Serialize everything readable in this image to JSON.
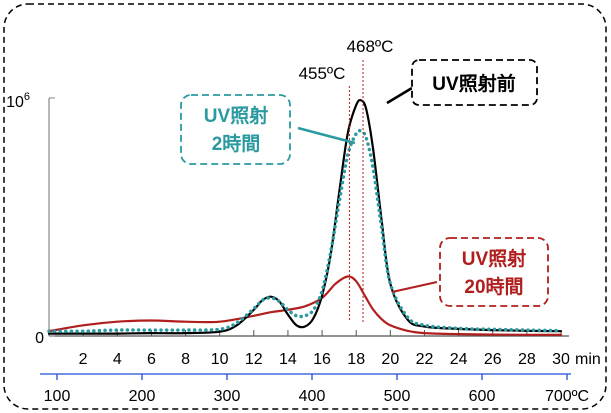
{
  "chart_data": {
    "type": "line",
    "x_unit": "min",
    "x_ticks": [
      2,
      4,
      6,
      8,
      10,
      12,
      14,
      16,
      18,
      20,
      22,
      24,
      26,
      28,
      30
    ],
    "xlim": [
      0,
      30
    ],
    "y_ticks": [
      {
        "value": 0,
        "base": "0",
        "exp": ""
      },
      {
        "value": 1000000,
        "base": "10",
        "exp": "6"
      }
    ],
    "ylim": [
      0,
      1000000
    ],
    "temperature_axis": {
      "unit": "ºC",
      "ticks": [
        {
          "label": "100",
          "temp": 100
        },
        {
          "label": "200",
          "temp": 200
        },
        {
          "label": "300",
          "temp": 300
        },
        {
          "label": "400",
          "temp": 400
        },
        {
          "label": "500",
          "temp": 500
        },
        {
          "label": "600",
          "temp": 600
        },
        {
          "label": "700ºC",
          "temp": 700
        }
      ]
    },
    "peak_markers": [
      {
        "label": "455ºC",
        "x": 17.6
      },
      {
        "label": "468ºC",
        "x": 18.4
      }
    ],
    "series": [
      {
        "name": "UV照射前",
        "color": "#000000",
        "style": "solid",
        "x": [
          0,
          2,
          4,
          6,
          8,
          10,
          11,
          12,
          12.5,
          13,
          13.5,
          14,
          14.5,
          15,
          15.5,
          16,
          16.5,
          17,
          17.5,
          18,
          18.3,
          18.6,
          19,
          19.5,
          20,
          21,
          22,
          24,
          26,
          28,
          30
        ],
        "values": [
          10000,
          10000,
          10000,
          12000,
          12000,
          18000,
          45000,
          110000,
          150000,
          165000,
          145000,
          90000,
          45000,
          40000,
          75000,
          170000,
          340000,
          600000,
          850000,
          970000,
          990000,
          950000,
          780000,
          480000,
          220000,
          70000,
          40000,
          30000,
          25000,
          22000,
          20000
        ]
      },
      {
        "name": "UV照射2時間",
        "color": "#2a9aa0",
        "style": "dotted",
        "x": [
          0,
          2,
          4,
          6,
          8,
          10,
          11,
          12,
          12.5,
          13,
          13.5,
          14,
          14.5,
          15,
          15.5,
          16,
          16.5,
          17,
          17.5,
          18,
          18.3,
          18.6,
          19,
          19.5,
          20,
          21,
          22,
          24,
          26,
          28,
          30
        ],
        "values": [
          20000,
          20000,
          25000,
          25000,
          25000,
          28000,
          55000,
          115000,
          150000,
          160000,
          145000,
          110000,
          85000,
          85000,
          110000,
          190000,
          350000,
          560000,
          760000,
          850000,
          860000,
          830000,
          700000,
          450000,
          220000,
          80000,
          45000,
          32000,
          28000,
          25000,
          22000
        ]
      },
      {
        "name": "UV照射20時間",
        "color": "#b01e1e",
        "style": "solid",
        "x": [
          0,
          2,
          4,
          6,
          8,
          10,
          12,
          13,
          14,
          15,
          16,
          16.8,
          17.5,
          18,
          18.5,
          19,
          19.5,
          20,
          21,
          22,
          24,
          26,
          28,
          30
        ],
        "values": [
          20000,
          45000,
          60000,
          65000,
          60000,
          60000,
          85000,
          100000,
          110000,
          125000,
          160000,
          220000,
          250000,
          230000,
          170000,
          110000,
          70000,
          45000,
          22000,
          12000,
          8000,
          6000,
          5000,
          5000
        ]
      }
    ]
  },
  "callouts": {
    "before": {
      "text": "UV照射前",
      "color": "#000000"
    },
    "two_hours": {
      "line1": "UV照射",
      "line2": "2時間",
      "color": "#2a9aa0"
    },
    "twenty_hours": {
      "line1": "UV照射",
      "line2": "20時間",
      "color": "#b01e1e"
    }
  },
  "colors": {
    "temp_axis": "#1f4fd8",
    "peak_marker": "#b01e1e"
  }
}
